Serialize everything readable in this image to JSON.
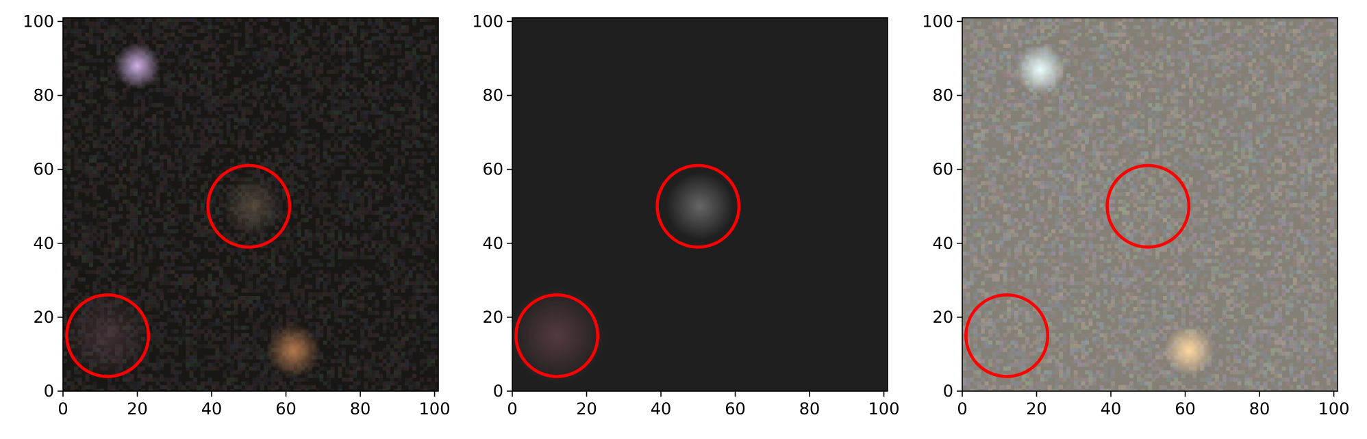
{
  "figure": {
    "panels": [
      {
        "name": "observed-image",
        "background": "#191714",
        "sources": [
          {
            "name": "bright-star",
            "x": 20,
            "y": 88,
            "sigma": 2.4,
            "color": "#d9b8f0",
            "alpha": 0.95
          },
          {
            "name": "orange-source",
            "x": 62,
            "y": 11,
            "sigma": 2.8,
            "color": "#d08a58",
            "alpha": 0.85
          },
          {
            "name": "faint-center",
            "x": 51,
            "y": 50,
            "sigma": 3.2,
            "color": "#7a6a55",
            "alpha": 0.55
          },
          {
            "name": "faint-lower-left",
            "x": 12,
            "y": 15,
            "sigma": 4.5,
            "color": "#6a4c55",
            "alpha": 0.45
          }
        ],
        "noise_color": "#2a2a2a"
      },
      {
        "name": "model-image",
        "background": "#1f1f1f",
        "sources": [
          {
            "name": "model-center",
            "x": 50.5,
            "y": 50,
            "sigma": 3.5,
            "color": "#6e6e6e",
            "alpha": 0.9
          },
          {
            "name": "model-lower-left",
            "x": 12,
            "y": 15,
            "sigma": 5,
            "color": "#5a3d43",
            "alpha": 0.9
          }
        ],
        "noise_color": null
      },
      {
        "name": "residual-image",
        "background": "#858076",
        "sources": [
          {
            "name": "residual-bright-star",
            "x": 21,
            "y": 87,
            "sigma": 2.6,
            "color": "#eaffff",
            "alpha": 1.0
          },
          {
            "name": "residual-orange-source",
            "x": 61,
            "y": 11,
            "sigma": 2.6,
            "color": "#ffd8a0",
            "alpha": 1.0
          }
        ],
        "noise_color": "#b0a8a0"
      }
    ],
    "circles": [
      {
        "x": 50,
        "y": 50,
        "radius": 11,
        "color": "#ff0000"
      },
      {
        "x": 12,
        "y": 15,
        "radius": 11,
        "color": "#ff0000"
      }
    ],
    "x_ticks": [
      "0",
      "20",
      "40",
      "60",
      "80",
      "100"
    ],
    "y_ticks": [
      "0",
      "20",
      "40",
      "60",
      "80",
      "100"
    ],
    "axis_range": [
      0,
      101
    ]
  }
}
